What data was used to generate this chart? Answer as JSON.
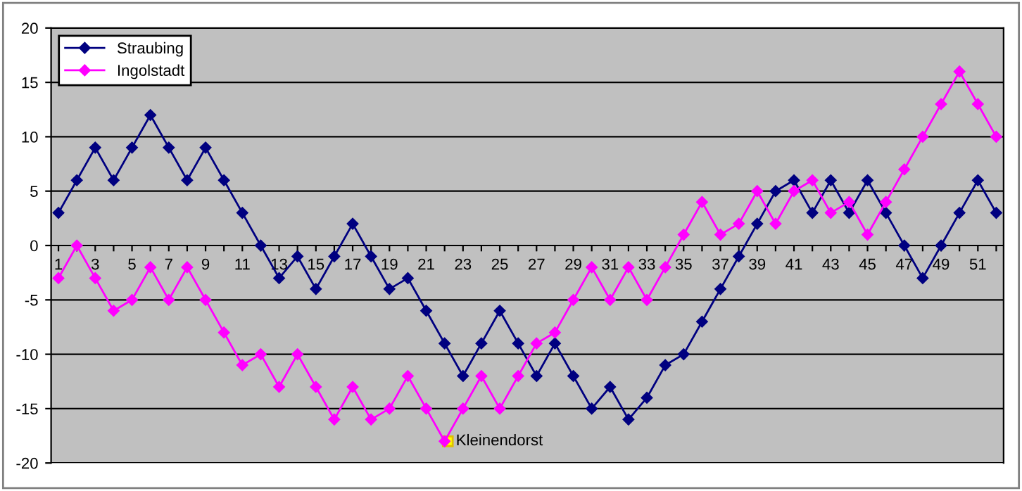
{
  "chart_data": {
    "type": "line",
    "categories": [
      "1",
      null,
      "3",
      null,
      "5",
      null,
      "7",
      null,
      "9",
      null,
      "11",
      null,
      "13",
      null,
      "15",
      null,
      "17",
      null,
      "19",
      null,
      "21",
      null,
      "23",
      null,
      "25",
      null,
      "27",
      null,
      "29",
      null,
      "31",
      null,
      "33",
      null,
      "35",
      null,
      "37",
      null,
      "39",
      null,
      "41",
      null,
      "43",
      null,
      "45",
      null,
      "47",
      null,
      "49",
      null,
      "51",
      null
    ],
    "series": [
      {
        "name": "Straubing",
        "color": "#000080",
        "values": [
          3,
          6,
          9,
          6,
          9,
          12,
          9,
          6,
          9,
          6,
          3,
          0,
          -3,
          -1,
          -4,
          -1,
          2,
          -1,
          -4,
          -3,
          -6,
          -9,
          -12,
          -9,
          -6,
          -9,
          -12,
          -9,
          -12,
          -15,
          -13,
          -16,
          -14,
          -11,
          -10,
          -7,
          -4,
          -1,
          2,
          5,
          6,
          3,
          6,
          3,
          6,
          3,
          0,
          -3,
          0,
          3,
          6,
          3
        ]
      },
      {
        "name": "Ingolstadt",
        "color": "#ff00ff",
        "values": [
          -3,
          0,
          -3,
          -6,
          -5,
          -2,
          -5,
          -2,
          -5,
          -8,
          -11,
          -10,
          -13,
          -10,
          -13,
          -16,
          -13,
          -16,
          -15,
          -12,
          -15,
          -18,
          -15,
          -12,
          -15,
          -12,
          -9,
          -8,
          -5,
          -2,
          -5,
          -2,
          -5,
          -2,
          1,
          4,
          1,
          2,
          5,
          2,
          5,
          6,
          3,
          4,
          1,
          4,
          7,
          10,
          13,
          16,
          13,
          10
        ]
      }
    ],
    "annotations": [
      "Kleinendorst"
    ],
    "ylim": [
      -20,
      20
    ],
    "yticks": [
      -20,
      -15,
      -10,
      -5,
      0,
      5,
      10,
      15,
      20
    ],
    "grid": "y",
    "legend": "top left",
    "marker": "diamond",
    "line_style": "solid"
  }
}
